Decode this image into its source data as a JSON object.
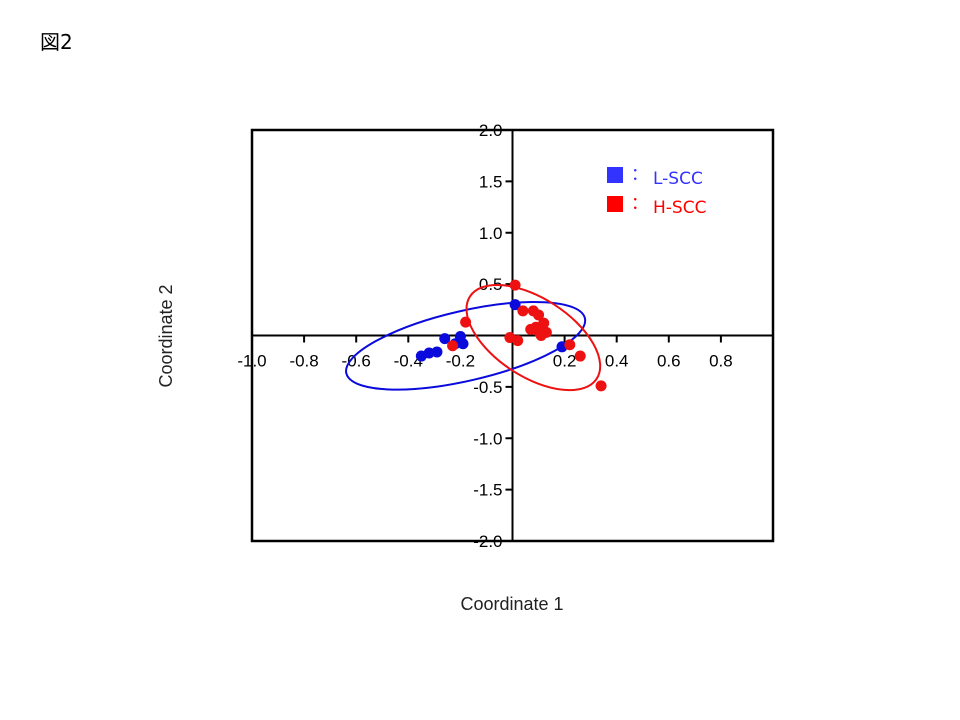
{
  "figure_label": "図2",
  "chart_data": {
    "type": "scatter",
    "xlabel": "Coordinate 1",
    "ylabel": "Coordinate 2",
    "xlim": [
      -1.0,
      1.0
    ],
    "ylim": [
      -2.0,
      2.0
    ],
    "xticks": [
      "-1.0",
      "-0.8",
      "-0.6",
      "-0.4",
      "-0.2",
      "0.2",
      "0.4",
      "0.6",
      "0.8"
    ],
    "xtick_values": [
      -1.0,
      -0.8,
      -0.6,
      -0.4,
      -0.2,
      0.2,
      0.4,
      0.6,
      0.8
    ],
    "yticks": [
      "2.0",
      "1.5",
      "1.0",
      "0.5",
      "-0.5",
      "-1.0",
      "-1.5",
      "-2.0"
    ],
    "ytick_values": [
      2.0,
      1.5,
      1.0,
      0.5,
      -0.5,
      -1.0,
      -1.5,
      -2.0
    ],
    "legend_position": "top-right",
    "legend_separator": "：",
    "series": [
      {
        "name": "L-SCC",
        "color": "#0a0adc",
        "legend_color": "#3333ff",
        "points": [
          [
            0.01,
            0.3
          ],
          [
            -0.26,
            -0.03
          ],
          [
            -0.2,
            -0.01
          ],
          [
            -0.19,
            -0.08
          ],
          [
            -0.22,
            -0.08
          ],
          [
            -0.29,
            -0.16
          ],
          [
            -0.32,
            -0.17
          ],
          [
            -0.35,
            -0.2
          ],
          [
            0.19,
            -0.11
          ]
        ],
        "ellipse": {
          "cx": -0.18,
          "cy": -0.1,
          "rx": 0.47,
          "ry": 0.34,
          "rotation_deg": -13
        }
      },
      {
        "name": "H-SCC",
        "color": "#ee1111",
        "legend_color": "#ff0000",
        "points": [
          [
            0.01,
            0.49
          ],
          [
            0.04,
            0.24
          ],
          [
            0.08,
            0.24
          ],
          [
            0.1,
            0.2
          ],
          [
            0.12,
            0.12
          ],
          [
            0.09,
            0.08
          ],
          [
            0.07,
            0.06
          ],
          [
            0.1,
            0.04
          ],
          [
            0.13,
            0.03
          ],
          [
            0.11,
            0.0
          ],
          [
            -0.01,
            -0.02
          ],
          [
            0.02,
            -0.05
          ],
          [
            -0.18,
            0.13
          ],
          [
            -0.23,
            -0.1
          ],
          [
            0.22,
            -0.09
          ],
          [
            0.26,
            -0.2
          ],
          [
            0.34,
            -0.49
          ]
        ],
        "ellipse": {
          "cx": 0.08,
          "cy": -0.02,
          "rx": 0.29,
          "ry": 0.38,
          "rotation_deg": 33
        }
      }
    ]
  }
}
